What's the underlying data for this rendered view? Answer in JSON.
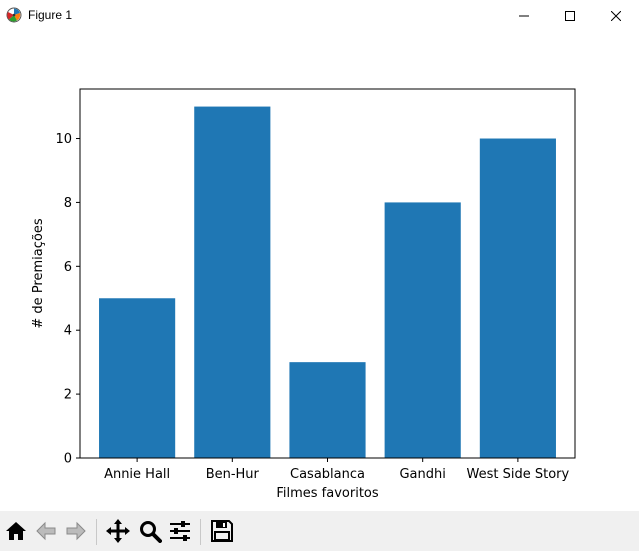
{
  "window": {
    "title": "Figure 1"
  },
  "colors": {
    "bar": "#1f77b4",
    "toolbar_bg": "#f0f0f0"
  },
  "toolbar": {
    "buttons": [
      "home-icon",
      "back-icon",
      "forward-icon",
      "pan-icon",
      "zoom-icon",
      "configure-subplots-icon",
      "save-icon"
    ]
  },
  "chart_data": {
    "type": "bar",
    "title": "",
    "xlabel": "Filmes favoritos",
    "ylabel": "# de Premiações",
    "categories": [
      "Annie Hall",
      "Ben-Hur",
      "Casablanca",
      "Gandhi",
      "West Side Story"
    ],
    "values": [
      5,
      11,
      3,
      8,
      10
    ],
    "ylim": [
      0,
      11.55
    ],
    "yticks": [
      0,
      2,
      4,
      6,
      8,
      10
    ],
    "ytick_labels": [
      "0",
      "2",
      "4",
      "6",
      "8",
      "10"
    ],
    "grid": false
  }
}
